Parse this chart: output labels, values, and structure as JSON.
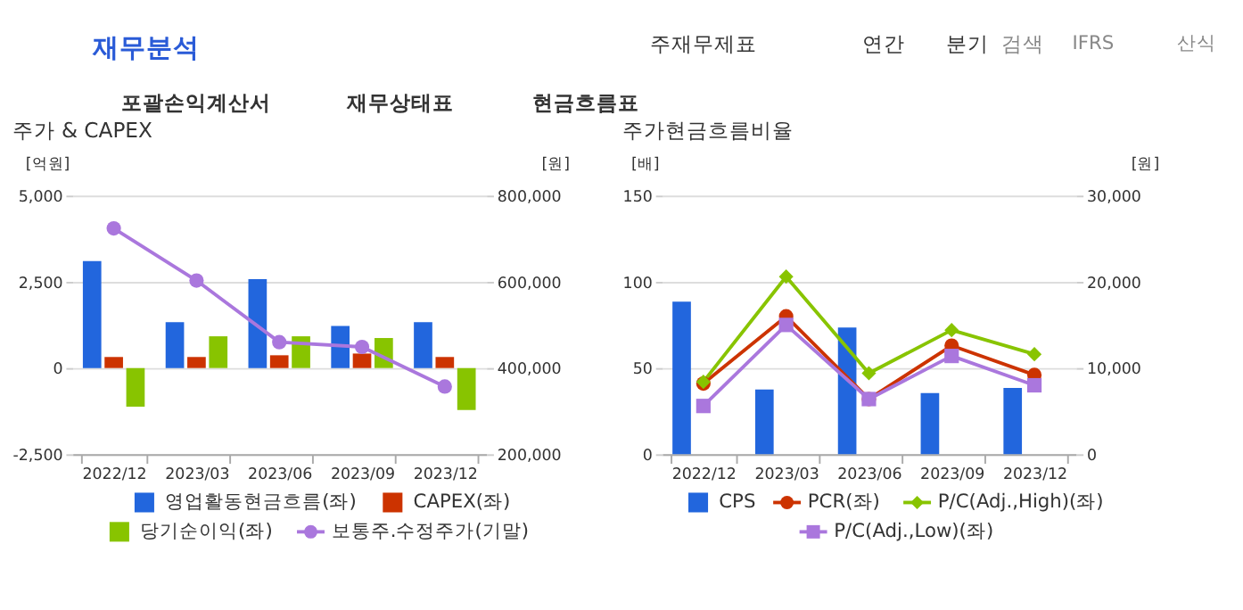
{
  "chart_data": [
    {
      "type": "other",
      "annotations": [
        "재무분석",
        "주재무제표",
        "연간",
        "분기",
        "검색",
        "IFRS",
        "산식",
        "포괄손익계산서",
        "재무상태표",
        "현금흐름표"
      ]
    },
    {
      "type": "bar",
      "title": "주가 & CAPEX",
      "categories": [
        "2022/12",
        "2023/03",
        "2023/06",
        "2023/09",
        "2023/12"
      ],
      "ylabel": "[억원]",
      "y2label": "[원]",
      "ylim": [
        -2500,
        5000
      ],
      "yticks": [
        {
          "value": -2500,
          "label": "-2,500"
        },
        0,
        {
          "value": 2500,
          "label": "2,500"
        },
        {
          "value": 5000,
          "label": "5,000"
        }
      ],
      "y2lim": [
        200000,
        800000
      ],
      "y2ticks": [
        {
          "value": 200000,
          "label": "200,000"
        },
        {
          "value": 400000,
          "label": "400,000"
        },
        {
          "value": 600000,
          "label": "600,000"
        },
        {
          "value": 800000,
          "label": "800,000"
        }
      ],
      "grid": "y",
      "legend": "bottom",
      "series": [
        {
          "name": "영업활동현금흐름(좌)",
          "color": "#2266dd",
          "values": [
            3100,
            1330,
            2580,
            1220,
            1330
          ]
        },
        {
          "name": "CAPEX(좌)",
          "color": "#cc3300",
          "values": [
            320,
            320,
            370,
            420,
            320
          ]
        },
        {
          "name": "당기순이익(좌)",
          "color": "#88c400",
          "values": [
            -1120,
            920,
            920,
            870,
            -1220
          ]
        },
        {
          "name": "보통주.수정주가(기말)",
          "type": "line",
          "axis": "y2",
          "marker": "circle",
          "color": "#aa77dd",
          "values": [
            724000,
            603000,
            460000,
            449000,
            357000
          ]
        }
      ]
    },
    {
      "type": "bar",
      "title": "주가현금흐름비율",
      "categories": [
        "2022/12",
        "2023/03",
        "2023/06",
        "2023/09",
        "2023/12"
      ],
      "ylabel": "[배]",
      "y2label": "[원]",
      "ylim": [
        0,
        150
      ],
      "yticks": [
        0,
        50,
        100,
        150
      ],
      "y2lim": [
        0,
        30000
      ],
      "y2ticks": [
        0,
        {
          "value": 10000,
          "label": "10,000"
        },
        {
          "value": 20000,
          "label": "20,000"
        },
        {
          "value": 30000,
          "label": "30,000"
        }
      ],
      "grid": "y",
      "legend": "bottom",
      "series": [
        {
          "name": "CPS",
          "color": "#2266dd",
          "axis": "y2",
          "values": [
            17700,
            7500,
            14700,
            7100,
            7700
          ]
        },
        {
          "name": "PCR(좌)",
          "type": "line",
          "marker": "circle",
          "color": "#cc3300",
          "values": [
            41,
            80,
            32,
            63,
            46
          ]
        },
        {
          "name": "P/C(Adj.,High)(좌)",
          "type": "line",
          "marker": "diamond",
          "color": "#88c400",
          "values": [
            42,
            103,
            47,
            72,
            58
          ]
        },
        {
          "name": "P/C(Adj.,Low)(좌)",
          "type": "line",
          "marker": "square",
          "color": "#aa77dd",
          "values": [
            28,
            75,
            32,
            57,
            40
          ]
        }
      ]
    }
  ]
}
